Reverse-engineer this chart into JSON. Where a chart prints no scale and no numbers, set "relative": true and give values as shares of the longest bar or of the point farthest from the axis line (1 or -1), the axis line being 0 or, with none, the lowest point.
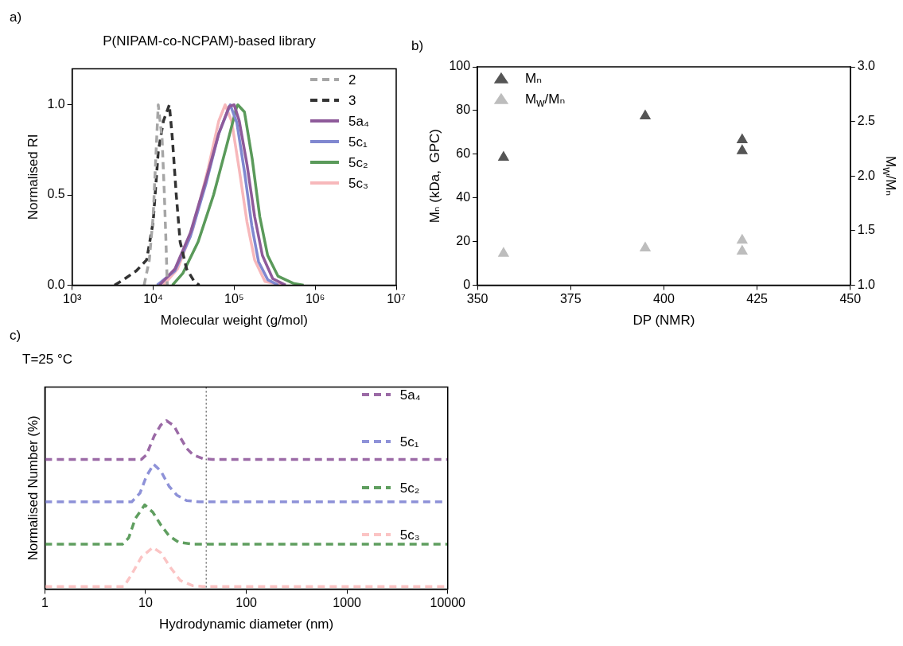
{
  "chart_data": [
    {
      "type": "line",
      "title": "P(NIPAM-co-NCPAM)-based library",
      "xlabel": "Molecular weight (g/mol)",
      "ylabel": "Normalised RI",
      "annotations": [
        "a)"
      ],
      "log": "x",
      "xlim": [
        1000,
        10000000
      ],
      "ylim": [
        0,
        1.2
      ],
      "xticks": [
        {
          "value": 1000,
          "label": "10³"
        },
        {
          "value": 10000,
          "label": "10⁴"
        },
        {
          "value": 100000,
          "label": "10⁵"
        },
        {
          "value": 1000000,
          "label": "10⁶"
        },
        {
          "value": 10000000,
          "label": "10⁷"
        }
      ],
      "yticks": [
        {
          "value": 0,
          "label": "0.0"
        },
        {
          "value": 0.5,
          "label": "0.5"
        },
        {
          "value": 1,
          "label": "1.0"
        }
      ],
      "legend": "top right",
      "marker": "none",
      "series": [
        {
          "name": "2",
          "color": "#a6a6a6",
          "line_style": "dashed",
          "x": [
            7740,
            8960,
            10000,
            10700,
            11560,
            12900,
            13700,
            14400,
            14950
          ],
          "values": [
            0,
            0.137,
            0.38,
            0.67,
            1.0,
            0.81,
            0.525,
            0.24,
            0
          ]
        },
        {
          "name": "3",
          "color": "#333333",
          "line_style": "dashed",
          "x": [
            3340,
            4310,
            6220,
            8320,
            10000,
            11570,
            13390,
            15850,
            17300,
            19300,
            21550,
            25860,
            32200,
            37200
          ],
          "values": [
            0,
            0.03,
            0.08,
            0.14,
            0.35,
            0.74,
            0.91,
            1.0,
            0.81,
            0.5,
            0.24,
            0.09,
            0.02,
            0
          ]
        },
        {
          "name": "5a₄",
          "color": "#8e5a9a",
          "line_style": "solid",
          "x": [
            12000,
            18600,
            28800,
            44700,
            64500,
            86500,
            100000,
            115600,
            144000,
            179000,
            223000,
            299000,
            431000
          ],
          "values": [
            0,
            0.09,
            0.29,
            0.58,
            0.84,
            0.99,
            1.0,
            0.91,
            0.67,
            0.38,
            0.165,
            0.036,
            0
          ]
        },
        {
          "name": "5c₁",
          "color": "#8088d0",
          "line_style": "solid",
          "x": [
            11200,
            18600,
            28800,
            44700,
            64500,
            89500,
            108000,
            135000,
            165000,
            200000,
            260000,
            350000
          ],
          "values": [
            0,
            0.08,
            0.27,
            0.56,
            0.84,
            1.0,
            0.9,
            0.62,
            0.33,
            0.13,
            0.03,
            0
          ]
        },
        {
          "name": "5c₂",
          "color": "#5a9a5a",
          "line_style": "solid",
          "x": [
            17300,
            23200,
            35900,
            55700,
            80400,
            107700,
            111000,
            134000,
            167000,
            207000,
            259000,
            347000,
            537000,
            720000
          ],
          "values": [
            0,
            0.065,
            0.24,
            0.5,
            0.77,
            0.99,
            1.0,
            0.96,
            0.7,
            0.38,
            0.165,
            0.05,
            0.01,
            0
          ]
        },
        {
          "name": "5c₃",
          "color": "#f7b8bb",
          "line_style": "solid",
          "x": [
            13400,
            20000,
            30900,
            47900,
            64500,
            77400,
            93000,
            115600,
            144000,
            179000,
            240000,
            400000
          ],
          "values": [
            0,
            0.09,
            0.31,
            0.65,
            0.91,
            1.0,
            0.91,
            0.64,
            0.35,
            0.14,
            0.02,
            0
          ]
        }
      ]
    },
    {
      "type": "scatter",
      "xlabel": "DP (NMR)",
      "ylabel": "Mₙ (kDa,  GPC)",
      "y2label": "M$_{w}$/Mₙ",
      "annotations": [
        "b)"
      ],
      "xlim": [
        350,
        450
      ],
      "ylim": [
        0,
        100
      ],
      "y2lim": [
        1,
        3
      ],
      "xticks": [
        350,
        375,
        400,
        425,
        450
      ],
      "yticks": [
        0,
        20,
        40,
        60,
        80,
        100
      ],
      "y2ticks": [
        {
          "value": 1,
          "label": "1.0"
        },
        {
          "value": 1.5,
          "label": "1.5"
        },
        {
          "value": 2,
          "label": "2.0"
        },
        {
          "value": 2.5,
          "label": "2.5"
        },
        {
          "value": 3,
          "label": "3.0"
        }
      ],
      "legend": "top left",
      "marker": "triangle",
      "x": [
        357,
        395,
        421,
        421
      ],
      "series": [
        {
          "name": "Mₙ",
          "color": "#555555",
          "values": [
            58.5,
            77.5,
            66.5,
            61.5
          ]
        },
        {
          "name": "M$_{w}$/Mₙ",
          "color": "#bdbdbd",
          "axis": "y2",
          "values": [
            1.29,
            1.34,
            1.41,
            1.31
          ]
        }
      ]
    },
    {
      "type": "line",
      "title": "T=25 °C",
      "xlabel": "Hydrodynamic diameter (nm)",
      "ylabel": "Normalised Number (%)",
      "annotations": [
        "c)"
      ],
      "relative": true,
      "log": "x",
      "xlim": [
        1,
        10000
      ],
      "xticks": [
        1,
        10,
        100,
        1000,
        10000
      ],
      "legend": "top right",
      "marker": "none",
      "line_style": "dashed",
      "ref_lines": [
        {
          "axis": "x",
          "value": 40,
          "line_style": "dotted",
          "color": "#555555"
        }
      ],
      "series": [
        {
          "name": "5a₄",
          "color": "#9b6aa6",
          "x": [
            1,
            9.1,
            10.2,
            12.2,
            14.2,
            16.1,
            19.1,
            22.1,
            25.6,
            29.6,
            37,
            46,
            10000
          ],
          "values": [
            0.77,
            0.77,
            0.797,
            0.91,
            0.975,
            1.0,
            0.97,
            0.9,
            0.835,
            0.797,
            0.775,
            0.77,
            0.77
          ]
        },
        {
          "name": "5c₁",
          "color": "#8e92d8",
          "x": [
            1,
            7.3,
            8.8,
            10.2,
            12,
            14.2,
            17.1,
            20.5,
            25.6,
            34.2,
            10000
          ],
          "values": [
            0.518,
            0.518,
            0.57,
            0.67,
            0.741,
            0.7,
            0.61,
            0.557,
            0.525,
            0.518,
            0.518
          ]
        },
        {
          "name": "5c₂",
          "color": "#5f9e5f",
          "x": [
            1,
            5.9,
            6.8,
            7.9,
            9.8,
            11.8,
            14.2,
            17.1,
            21.3,
            29.6,
            10000
          ],
          "values": [
            0.266,
            0.266,
            0.304,
            0.418,
            0.5,
            0.456,
            0.38,
            0.316,
            0.278,
            0.266,
            0.266
          ]
        },
        {
          "name": "5c₃",
          "color": "#fbc4c4",
          "x": [
            1,
            6.1,
            7.3,
            9.1,
            11.8,
            14.2,
            17.7,
            22.1,
            29.6,
            37,
            10000
          ],
          "values": [
            0.015,
            0.015,
            0.089,
            0.19,
            0.247,
            0.215,
            0.127,
            0.051,
            0.019,
            0.015,
            0.015
          ]
        }
      ]
    }
  ]
}
